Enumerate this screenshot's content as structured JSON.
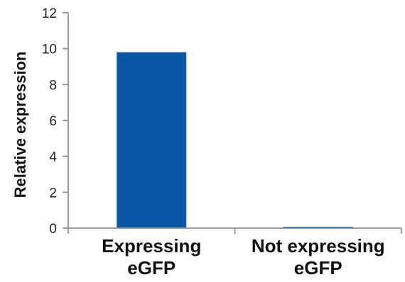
{
  "chart_data": {
    "type": "bar",
    "categories": [
      "Expressing eGFP",
      "Not expressing eGFP"
    ],
    "category_label_lines": [
      [
        "Expressing",
        "eGFP"
      ],
      [
        "Not expressing",
        "eGFP"
      ]
    ],
    "values": [
      9.8,
      0.05
    ],
    "title": "",
    "xlabel": "",
    "ylabel": "Relative expression",
    "ylim": [
      0,
      12
    ],
    "yticks": [
      "0",
      "2",
      "4",
      "6",
      "8",
      "10",
      "12"
    ],
    "grid": false,
    "legend": "none",
    "bar_color": "#0a57a5",
    "axis_color": "#9a9a9a"
  }
}
